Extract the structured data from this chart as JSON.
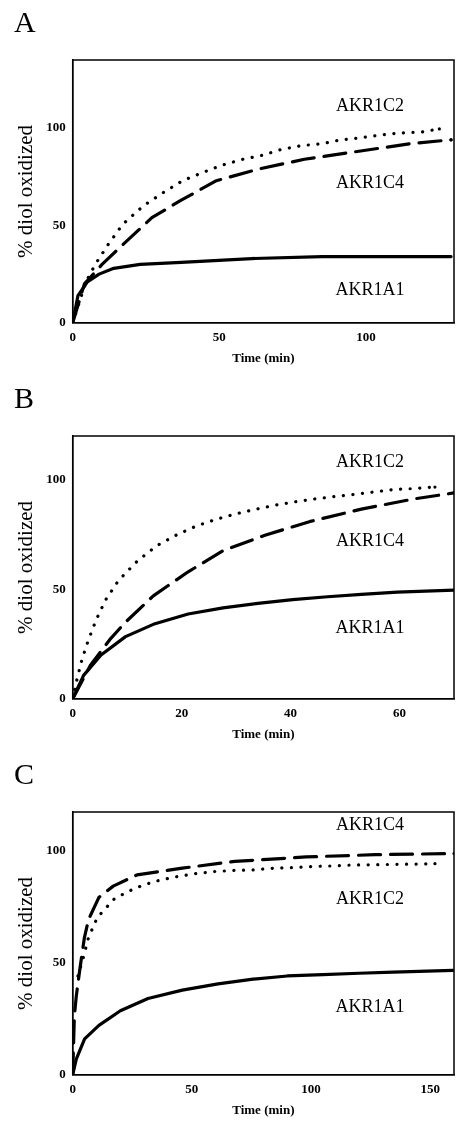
{
  "chart_data": [
    {
      "type": "line",
      "title": "A",
      "xlabel": "Time (min)",
      "ylabel": "% diol oxidized",
      "xlim": [
        0,
        130
      ],
      "xticks": [
        0,
        50,
        100
      ],
      "ylim": [
        0,
        135
      ],
      "yticks": [
        0,
        50,
        100
      ],
      "grid": false,
      "marker": "none",
      "series": [
        {
          "name": "AKR1C2",
          "color": "#000000",
          "line_style": "dotted",
          "x": [
            0,
            4.5,
            7.7,
            12,
            17,
            24,
            31,
            37.5,
            44,
            51,
            58,
            64.5,
            71,
            78,
            85,
            91.5,
            98,
            105,
            112,
            119,
            125
          ],
          "values": [
            0,
            21,
            30,
            40,
            50.5,
            60,
            67,
            73,
            77,
            81,
            84,
            86,
            89,
            91,
            92,
            94,
            95,
            96.5,
            97.5,
            98,
            99.6
          ]
        },
        {
          "name": "AKR1C4",
          "color": "#000000",
          "line_style": "dashed",
          "x": [
            0,
            4,
            10,
            17,
            27,
            37,
            49,
            63.5,
            79,
            97,
            115,
            129
          ],
          "values": [
            0,
            20,
            30,
            40,
            54,
            63,
            73,
            79,
            84,
            88,
            92,
            94
          ]
        },
        {
          "name": "AKR1A1",
          "color": "#000000",
          "line_style": "solid",
          "x": [
            0,
            1.8,
            5,
            9,
            14,
            23,
            37,
            61,
            85,
            109,
            129
          ],
          "values": [
            0,
            14,
            21,
            25,
            28,
            30,
            31,
            33,
            34,
            34,
            34
          ]
        }
      ],
      "legend": false
    },
    {
      "type": "line",
      "title": "B",
      "xlabel": "Time (min)",
      "ylabel": "% diol oxidized",
      "xlim": [
        0,
        70
      ],
      "xticks": [
        0,
        20,
        40,
        60
      ],
      "ylim": [
        0,
        120
      ],
      "yticks": [
        0,
        50,
        100
      ],
      "grid": false,
      "marker": "none",
      "series": [
        {
          "name": "AKR1C2",
          "color": "#000000",
          "line_style": "dotted",
          "x": [
            0,
            0.8,
            1.7,
            2.9,
            4.3,
            6,
            8.4,
            11.9,
            15.5,
            19.2,
            22.8,
            26.4,
            30,
            33.7,
            37.3,
            41,
            44.6,
            48.2,
            51.9,
            55.5,
            59,
            62.8,
            66.5
          ],
          "values": [
            0,
            9,
            18,
            27,
            36,
            45,
            54,
            63,
            70,
            75,
            79,
            82,
            84.5,
            86.6,
            88.5,
            90,
            91.3,
            92.4,
            93.4,
            94.5,
            95.6,
            96,
            96.7
          ]
        },
        {
          "name": "AKR1C4",
          "color": "#000000",
          "line_style": "dashed",
          "x": [
            0,
            3.3,
            6.8,
            9.7,
            14.8,
            21.2,
            27.6,
            35.3,
            43.6,
            53,
            62.7,
            70
          ],
          "values": [
            0,
            15.5,
            27,
            35,
            47,
            58,
            67.6,
            74.7,
            81,
            86.6,
            91.3,
            94
          ]
        },
        {
          "name": "AKR1A1",
          "color": "#000000",
          "line_style": "solid",
          "x": [
            0,
            2,
            5.2,
            9.7,
            14.8,
            21.2,
            27.6,
            34,
            40.4,
            46.8,
            53,
            59.6,
            70
          ],
          "values": [
            0,
            10.7,
            20,
            28.4,
            34,
            38.7,
            41.5,
            43.6,
            45.3,
            46.6,
            47.7,
            48.7,
            49.6
          ]
        }
      ],
      "legend": false
    },
    {
      "type": "line",
      "title": "C",
      "xlabel": "Time (min)",
      "ylabel": "% diol oxidized",
      "xlim": [
        0,
        160
      ],
      "xticks": [
        0,
        50,
        100,
        150
      ],
      "ylim": [
        0,
        117
      ],
      "yticks": [
        0,
        50,
        100
      ],
      "grid": false,
      "marker": "none",
      "series": [
        {
          "name": "AKR1C4",
          "color": "#000000",
          "line_style": "dashed",
          "x": [
            0,
            0.7,
            1.5,
            3,
            4.9,
            6.6,
            11,
            17,
            27,
            46,
            68,
            98,
            127,
            160
          ],
          "values": [
            0,
            26,
            35,
            47,
            61,
            69,
            79,
            84,
            89,
            92,
            95,
            97,
            98,
            98.5
          ]
        },
        {
          "name": "AKR1C2",
          "color": "#000000",
          "line_style": "dotted",
          "x": [
            2.2,
            4.4,
            6.6,
            10.3,
            17.6,
            26,
            34,
            42.6,
            51,
            59.6,
            68,
            76,
            84.6,
            93,
            101.5,
            109.5,
            118,
            126.5,
            135,
            143.7,
            152
          ],
          "values": [
            44,
            52,
            61,
            70,
            78.5,
            83,
            86,
            88,
            89.5,
            90.5,
            91,
            91.2,
            92,
            92.3,
            92.8,
            93,
            93.4,
            93.5,
            93.7,
            93.8,
            94
          ]
        },
        {
          "name": "AKR1A1",
          "color": "#000000",
          "line_style": "solid",
          "x": [
            0,
            1.5,
            5,
            11,
            20,
            31.6,
            46,
            61,
            75.7,
            90,
            105,
            120,
            134.5,
            159.5
          ],
          "values": [
            0,
            7,
            16,
            22,
            28.5,
            34,
            37.7,
            40.5,
            42.6,
            44,
            44.6,
            45.2,
            45.7,
            46.5
          ]
        }
      ],
      "legend": false
    }
  ]
}
